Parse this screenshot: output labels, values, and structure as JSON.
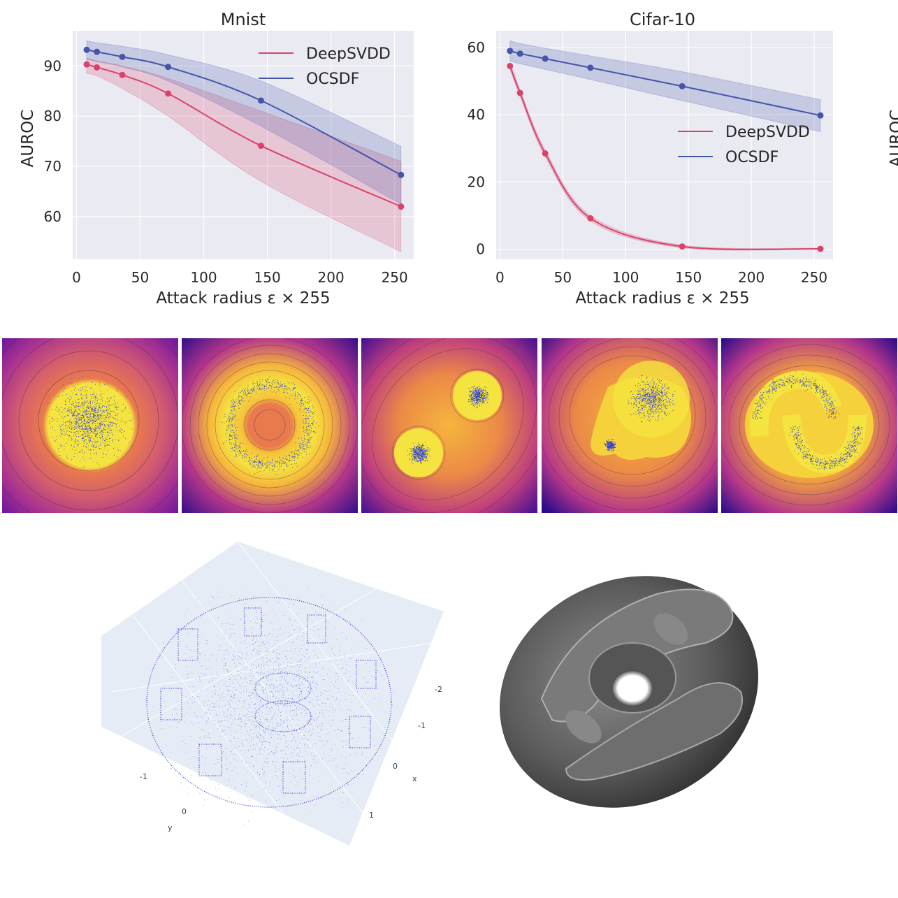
{
  "colors": {
    "deepsvdd": "#d9436b",
    "ocsdf": "#4356a8",
    "plot_bg": "#eaeaf2",
    "grid": "#ffffff"
  },
  "chart_data": [
    {
      "type": "line",
      "title": "Mnist",
      "xlabel": "Attack radius ε × 255",
      "ylabel": "AUROC",
      "xlim": [
        -3,
        265
      ],
      "ylim": [
        51.5,
        97
      ],
      "xticks": [
        0,
        50,
        100,
        150,
        200,
        250
      ],
      "yticks": [
        60,
        70,
        80,
        90
      ],
      "grid": true,
      "legend_position": "upper right",
      "series": [
        {
          "name": "DeepSVDD",
          "color_key": "deepsvdd",
          "x": [
            8,
            16,
            36,
            72,
            145,
            255
          ],
          "y": [
            90.3,
            89.7,
            88.2,
            84.5,
            74.1,
            62.0
          ],
          "band_upper": [
            91.5,
            91.0,
            90.0,
            87.5,
            81.0,
            71.0
          ],
          "band_lower": [
            88.5,
            88.0,
            85.5,
            80.0,
            67.0,
            53.0
          ]
        },
        {
          "name": "OCSDF",
          "color_key": "ocsdf",
          "x": [
            8,
            16,
            36,
            72,
            145,
            255
          ],
          "y": [
            93.2,
            92.8,
            91.8,
            89.8,
            83.1,
            68.3
          ],
          "band_upper": [
            95.0,
            94.6,
            93.9,
            92.2,
            87.0,
            74.0
          ],
          "band_lower": [
            91.3,
            90.9,
            89.8,
            87.0,
            78.0,
            62.5
          ]
        }
      ]
    },
    {
      "type": "line",
      "title": "Cifar-10",
      "xlabel": "Attack radius ε × 255",
      "ylabel": "AUROC",
      "xlim": [
        -3,
        265
      ],
      "ylim": [
        -3,
        65
      ],
      "xticks": [
        0,
        50,
        100,
        150,
        200,
        250
      ],
      "yticks": [
        0,
        20,
        40,
        60
      ],
      "grid": true,
      "legend_position": "center right",
      "series": [
        {
          "name": "DeepSVDD",
          "color_key": "deepsvdd",
          "x": [
            8,
            16,
            36,
            72,
            145,
            255
          ],
          "y": [
            54.5,
            46.5,
            28.5,
            9.2,
            0.8,
            0.1
          ],
          "band_upper": [
            55.5,
            47.5,
            29.5,
            10.0,
            1.2,
            0.3
          ],
          "band_lower": [
            53.5,
            45.5,
            27.5,
            8.4,
            0.4,
            0.0
          ]
        },
        {
          "name": "OCSDF",
          "color_key": "ocsdf",
          "x": [
            8,
            16,
            36,
            72,
            145,
            255
          ],
          "y": [
            59.0,
            58.2,
            56.7,
            54.0,
            48.5,
            39.8
          ],
          "band_upper": [
            62.0,
            61.2,
            59.8,
            57.5,
            52.8,
            44.5
          ],
          "band_lower": [
            56.0,
            55.2,
            53.5,
            50.5,
            44.2,
            35.0
          ]
        }
      ]
    }
  ],
  "heatmaps": {
    "colormap": "plasma",
    "point_color": "#2233dd",
    "panels": [
      "single-gaussian-blob",
      "ring-annulus",
      "two-gaussian-blobs",
      "large-blob-and-small-blob",
      "two-moons"
    ]
  },
  "point_cloud_3d": {
    "axis_ticks": [
      "-2",
      "-1",
      "0",
      "x",
      "1",
      "-1",
      "0",
      "y"
    ]
  },
  "surface_3d": {
    "shape": "reconstructed-disc-with-central-hole"
  }
}
